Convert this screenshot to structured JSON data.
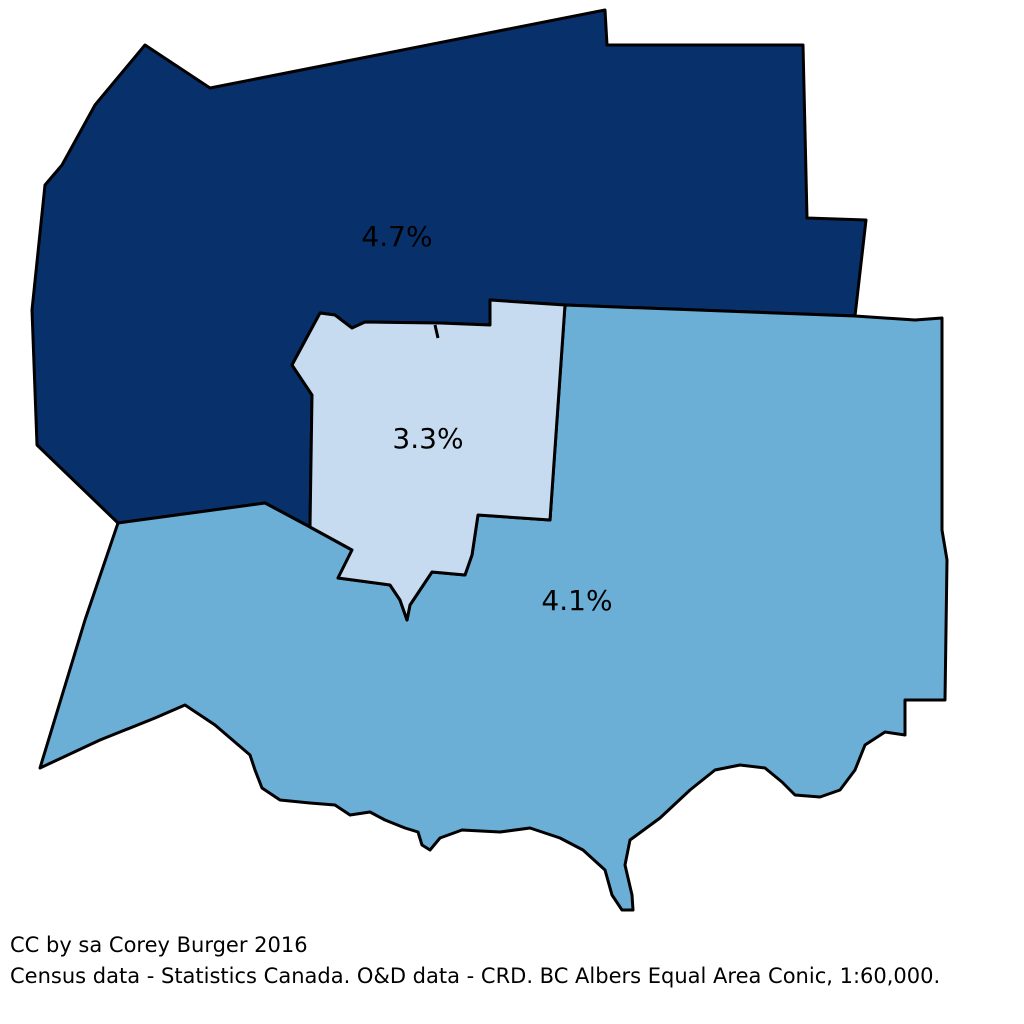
{
  "map": {
    "regions": [
      {
        "id": "north",
        "value_label": "4.7%",
        "fill": "#08306b"
      },
      {
        "id": "center",
        "value_label": "3.3%",
        "fill": "#c6dbef"
      },
      {
        "id": "south",
        "value_label": "4.1%",
        "fill": "#6baed6"
      }
    ],
    "outline_color": "#000000"
  },
  "credits": {
    "line1": "CC by sa Corey Burger 2016",
    "line2": "Census data - Statistics Canada. O&D data - CRD. BC Albers Equal Area Conic, 1:60,000."
  }
}
